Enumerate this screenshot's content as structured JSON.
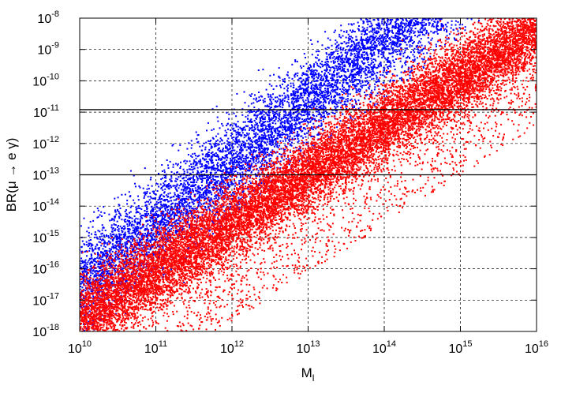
{
  "chart_data": {
    "type": "scatter",
    "title": "",
    "xlabel": "M",
    "xlabel_subscript": "l",
    "ylabel": "BR(μ → e γ)",
    "x_scale": "log",
    "y_scale": "log",
    "xlim": [
      10000000000.0,
      1e+16
    ],
    "ylim": [
      1e-18,
      1e-08
    ],
    "grid": true,
    "x_ticks": [
      {
        "base": "10",
        "exp": "10"
      },
      {
        "base": "10",
        "exp": "11"
      },
      {
        "base": "10",
        "exp": "12"
      },
      {
        "base": "10",
        "exp": "13"
      },
      {
        "base": "10",
        "exp": "14"
      },
      {
        "base": "10",
        "exp": "15"
      },
      {
        "base": "10",
        "exp": "16"
      }
    ],
    "y_ticks": [
      {
        "base": "10",
        "exp": "-18"
      },
      {
        "base": "10",
        "exp": "-17"
      },
      {
        "base": "10",
        "exp": "-16"
      },
      {
        "base": "10",
        "exp": "-15"
      },
      {
        "base": "10",
        "exp": "-14"
      },
      {
        "base": "10",
        "exp": "-13"
      },
      {
        "base": "10",
        "exp": "-12"
      },
      {
        "base": "10",
        "exp": "-11"
      },
      {
        "base": "10",
        "exp": "-10"
      },
      {
        "base": "10",
        "exp": "-9"
      },
      {
        "base": "10",
        "exp": "-8"
      }
    ],
    "reference_lines": [
      {
        "y": 1.2e-11,
        "style": "solid"
      },
      {
        "y": 1e-13,
        "style": "solid"
      }
    ],
    "series": [
      {
        "color": "#0000ff",
        "points_approx": 9000,
        "band": {
          "x_start": 10000000000.0,
          "x_end": 1e+16,
          "log_y_at_x_start": -16.4,
          "log_y_slope_per_decade": 1.95,
          "log_spread": 1.25,
          "log_lower_tail": 2.0
        }
      },
      {
        "color": "#ff0000",
        "points_approx": 16000,
        "band": {
          "x_start": 10000000000.0,
          "x_end": 1e+16,
          "log_y_at_x_start": -17.6,
          "log_y_slope_per_decade": 1.55,
          "log_spread": 1.15,
          "log_lower_tail": 3.2
        }
      }
    ]
  }
}
